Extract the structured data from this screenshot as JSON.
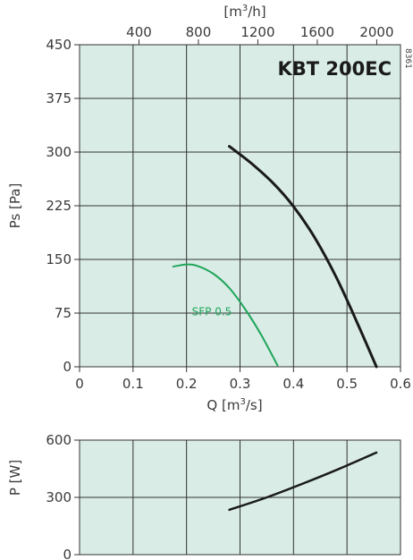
{
  "figure": {
    "title": "KBT 200EC",
    "code": "8361",
    "top_axis": {
      "label_base": "[m",
      "label_sup": "3",
      "label_end": "/h]",
      "ticks": [
        "400",
        "800",
        "1200",
        "1600",
        "2000"
      ],
      "tick_values": [
        400,
        800,
        1200,
        1600,
        2000
      ]
    }
  },
  "colors": {
    "plot_bg": "#d9ece6",
    "grid": "#333333",
    "curve": "#1a1a1a",
    "sfp": "#1fa55a"
  },
  "chart_data": [
    {
      "type": "line",
      "xlabel_base": "Q [m",
      "xlabel_sup": "3",
      "xlabel_end": "/s]",
      "ylabel": "Ps [Pa]",
      "xlim": [
        0,
        0.6
      ],
      "ylim": [
        0,
        450
      ],
      "x_ticks": [
        "0",
        "0.1",
        "0.2",
        "0.3",
        "0.4",
        "0.5",
        "0.6"
      ],
      "x_tick_values": [
        0,
        0.1,
        0.2,
        0.3,
        0.4,
        0.5,
        0.6
      ],
      "y_ticks": [
        "0",
        "75",
        "150",
        "225",
        "300",
        "375",
        "450"
      ],
      "y_tick_values": [
        0,
        75,
        150,
        225,
        300,
        375,
        450
      ],
      "grid": true,
      "series": [
        {
          "x": [
            0.28,
            0.32,
            0.36,
            0.4,
            0.44,
            0.48,
            0.52,
            0.555
          ],
          "y": [
            308,
            285,
            258,
            224,
            180,
            125,
            60,
            0
          ]
        },
        {
          "name": "SFP 0.5",
          "x": [
            0.175,
            0.2,
            0.22,
            0.25,
            0.28,
            0.31,
            0.34,
            0.37
          ],
          "y": [
            140,
            143,
            141,
            130,
            110,
            80,
            44,
            2
          ]
        }
      ]
    },
    {
      "type": "line",
      "ylabel": "P [W]",
      "xlim": [
        0,
        0.6
      ],
      "ylim": [
        0,
        600
      ],
      "y_ticks": [
        "0",
        "300",
        "600"
      ],
      "y_tick_values": [
        0,
        300,
        600
      ],
      "grid": true,
      "series": [
        {
          "x": [
            0.28,
            0.35,
            0.42,
            0.49,
            0.555
          ],
          "y": [
            235,
            300,
            375,
            455,
            535
          ]
        }
      ]
    }
  ]
}
